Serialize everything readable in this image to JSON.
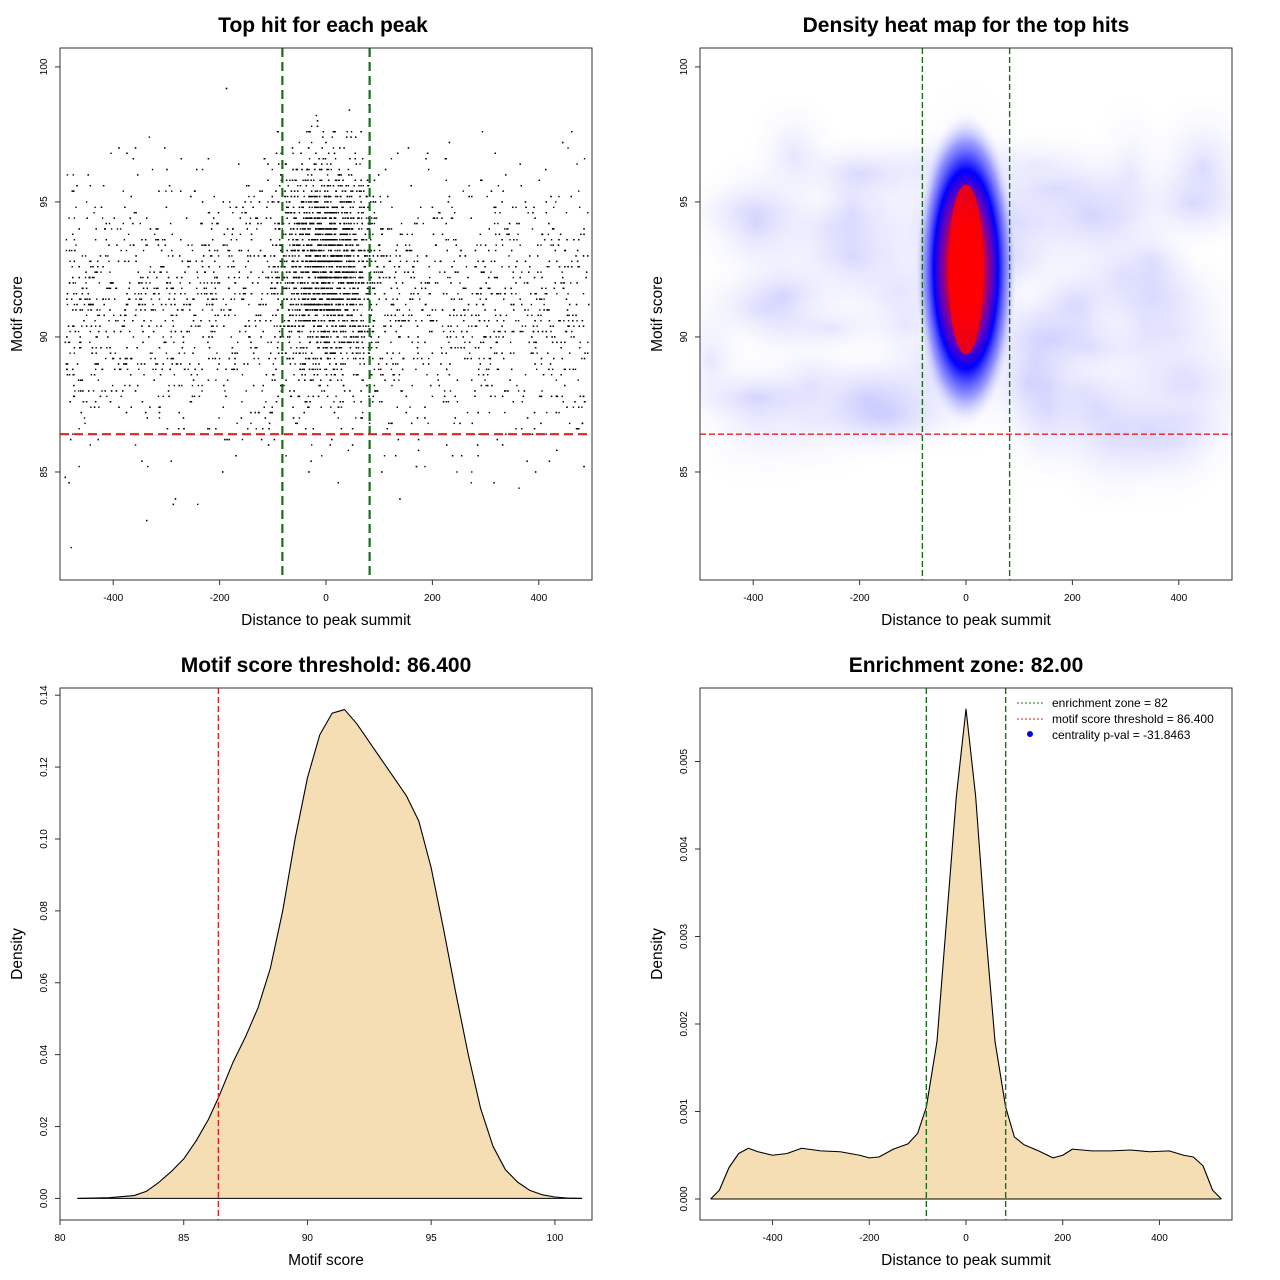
{
  "colors": {
    "threshold": "#dd2222",
    "zone": "#1a6e1a",
    "fill": "#f5deb3",
    "points": "#000000",
    "heat_low": "#ffffff",
    "heat_mid": "#0000ff",
    "heat_high": "#ff0000",
    "legend_dot": "#0000dd"
  },
  "chart_data": [
    {
      "type": "scatter",
      "title": "Top hit for each peak",
      "xlabel": "Distance to peak summit",
      "ylabel": "Motif score",
      "xlim": [
        -500,
        500
      ],
      "ylim": [
        81,
        100.7
      ],
      "xticks": [
        -400,
        -200,
        0,
        200,
        400
      ],
      "yticks": [
        85,
        90,
        95,
        100
      ],
      "n_points": 6000,
      "central_window": [
        -82,
        82
      ],
      "hlines": [
        {
          "y": 86.4,
          "color": "threshold",
          "style": "dashed"
        }
      ],
      "vlines": [
        {
          "x": -82,
          "color": "zone",
          "style": "dashed"
        },
        {
          "x": 82,
          "color": "zone",
          "style": "dashed"
        }
      ]
    },
    {
      "type": "heatmap",
      "title": "Density heat map for the top hits",
      "xlabel": "Distance to peak summit",
      "ylabel": "Motif score",
      "xlim": [
        -500,
        500
      ],
      "ylim": [
        81,
        100.7
      ],
      "xticks": [
        -400,
        -200,
        0,
        200,
        400
      ],
      "yticks": [
        85,
        90,
        95,
        100
      ],
      "hotspot": {
        "x": 0,
        "y": 92.5
      },
      "hlines": [
        {
          "y": 86.4,
          "color": "threshold",
          "style": "dashed"
        }
      ],
      "vlines": [
        {
          "x": -82,
          "color": "zone",
          "style": "dashed"
        },
        {
          "x": 82,
          "color": "zone",
          "style": "dashed"
        }
      ]
    },
    {
      "type": "area",
      "title": "Motif score threshold: 86.400",
      "xlabel": "Motif score",
      "ylabel": "Density",
      "xlim": [
        80,
        101.5
      ],
      "ylim": [
        -0.006,
        0.142
      ],
      "xticks": [
        80,
        85,
        90,
        95,
        100
      ],
      "yticks": [
        0.0,
        0.02,
        0.04,
        0.06,
        0.08,
        0.1,
        0.12,
        0.14
      ],
      "ytick_labels": [
        "0.00",
        "0.02",
        "0.04",
        "0.06",
        "0.08",
        "0.10",
        "0.12",
        "0.14"
      ],
      "x": [
        80.7,
        82,
        83,
        83.5,
        84,
        84.5,
        85,
        85.5,
        86,
        86.4,
        87,
        87.5,
        88,
        88.5,
        89,
        89.5,
        90,
        90.5,
        91,
        91.5,
        92,
        92.5,
        93,
        93.5,
        94,
        94.5,
        95,
        95.5,
        96,
        96.5,
        97,
        97.5,
        98,
        98.5,
        99,
        99.5,
        100,
        100.5,
        101.1
      ],
      "y": [
        0.0,
        0.0002,
        0.0008,
        0.002,
        0.0045,
        0.0075,
        0.011,
        0.016,
        0.022,
        0.028,
        0.038,
        0.045,
        0.053,
        0.064,
        0.08,
        0.1,
        0.117,
        0.129,
        0.135,
        0.136,
        0.132,
        0.127,
        0.122,
        0.117,
        0.112,
        0.105,
        0.092,
        0.075,
        0.057,
        0.04,
        0.025,
        0.0145,
        0.008,
        0.0045,
        0.0022,
        0.001,
        0.0004,
        0.0001,
        0.0
      ],
      "vlines": [
        {
          "x": 86.4,
          "color": "threshold",
          "style": "dashed"
        }
      ]
    },
    {
      "type": "area",
      "title": "Enrichment zone: 82.00",
      "xlabel": "Distance to peak summit",
      "ylabel": "Density",
      "xlim": [
        -550,
        550
      ],
      "ylim": [
        -0.00024,
        0.00584
      ],
      "xticks": [
        -400,
        -200,
        0,
        200,
        400
      ],
      "yticks": [
        0.0,
        0.001,
        0.002,
        0.003,
        0.004,
        0.005
      ],
      "ytick_labels": [
        "0.000",
        "0.001",
        "0.002",
        "0.003",
        "0.004",
        "0.005"
      ],
      "x": [
        -528,
        -510,
        -490,
        -470,
        -450,
        -430,
        -400,
        -370,
        -340,
        -300,
        -260,
        -220,
        -200,
        -180,
        -150,
        -120,
        -100,
        -82,
        -60,
        -40,
        -20,
        0,
        20,
        40,
        60,
        82,
        100,
        120,
        150,
        180,
        200,
        220,
        260,
        300,
        340,
        380,
        420,
        450,
        470,
        490,
        510,
        528
      ],
      "y": [
        0.0,
        0.0001,
        0.00036,
        0.00052,
        0.00058,
        0.00054,
        0.0005,
        0.00052,
        0.00058,
        0.00055,
        0.00054,
        0.0005,
        0.00047,
        0.00048,
        0.00057,
        0.00063,
        0.00075,
        0.00105,
        0.0018,
        0.0032,
        0.0046,
        0.0056,
        0.0046,
        0.0031,
        0.0018,
        0.00105,
        0.00071,
        0.00062,
        0.00055,
        0.00047,
        0.0005,
        0.00057,
        0.00055,
        0.00055,
        0.00056,
        0.00054,
        0.00055,
        0.0005,
        0.00048,
        0.00038,
        0.0001,
        0.0
      ],
      "vlines": [
        {
          "x": -82,
          "color": "zone",
          "style": "dashed"
        },
        {
          "x": 82,
          "color": "zone",
          "style": "dashed"
        }
      ],
      "legend": {
        "position": "top-right",
        "entries": [
          {
            "label": "enrichment zone = 82",
            "symbol": "line",
            "color": "zone"
          },
          {
            "label": "motif score threshold = 86.400",
            "symbol": "line",
            "color": "threshold"
          },
          {
            "label": "centrality p-val = -31.8463",
            "symbol": "dot",
            "color": "legend_dot"
          }
        ]
      }
    }
  ]
}
